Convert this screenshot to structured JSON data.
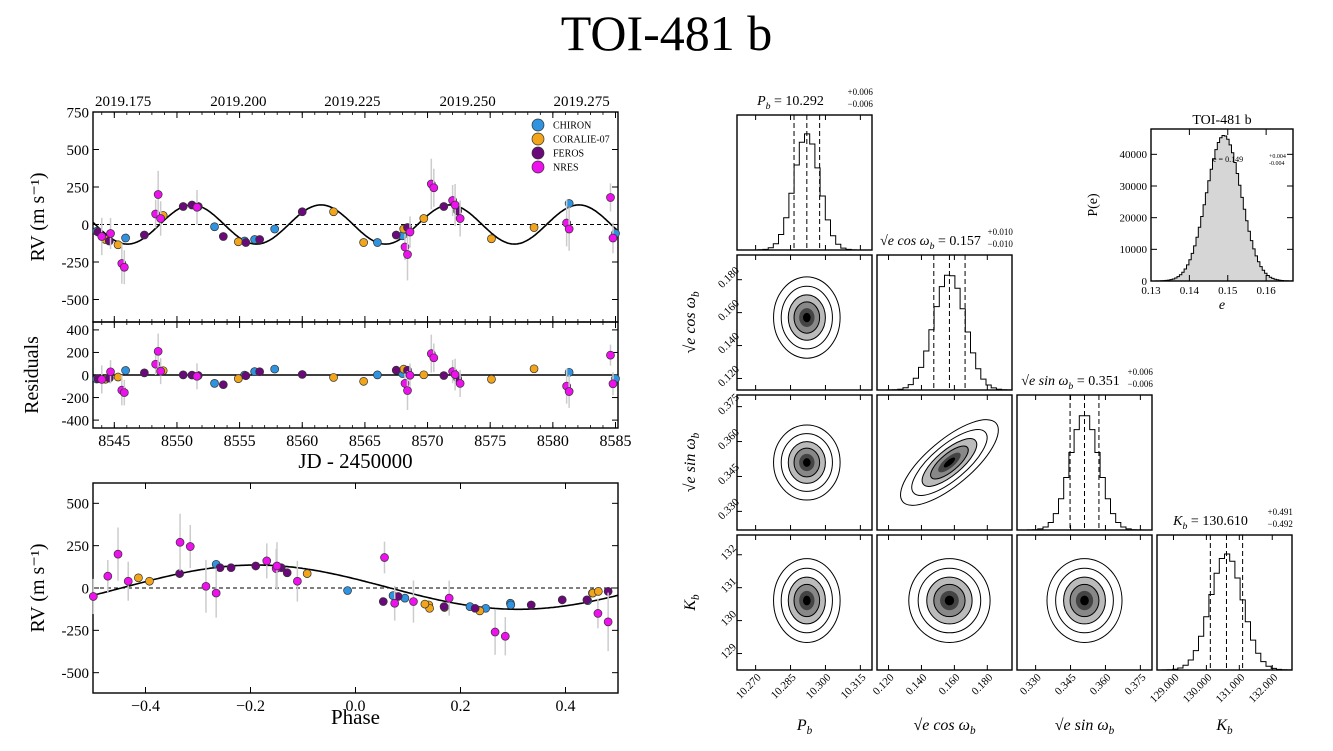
{
  "title": "TOI-481 b",
  "colors": {
    "CHIRON": "#2f93e0",
    "CORALIE-07": "#f2a51a",
    "FEROS": "#6a0a7a",
    "NRES": "#ee11ee"
  },
  "chart_data": [
    {
      "type": "scatter",
      "name": "rv_timeseries",
      "ylabel": "RV (m s⁻¹)",
      "xlim": [
        8543.3,
        8585.2
      ],
      "ylim": [
        -650,
        750
      ],
      "yticks": [
        -500,
        -250,
        0,
        250,
        500,
        750
      ],
      "xticks": [
        8545,
        8550,
        8555,
        8560,
        8565,
        8570,
        8575,
        8580,
        8585
      ],
      "top_axis_ticks": [
        {
          "label": "2019.175",
          "x": 8545.7
        },
        {
          "label": "2019.200",
          "x": 8554.9
        },
        {
          "label": "2019.225",
          "x": 8564.0
        },
        {
          "label": "2019.250",
          "x": 8573.2
        },
        {
          "label": "2019.275",
          "x": 8582.3
        }
      ],
      "legend": [
        "CHIRON",
        "CORALIE-07",
        "FEROS",
        "NRES"
      ],
      "model": {
        "period": 10.292,
        "K": 130.61,
        "t_peak": 8551.2
      },
      "series": {
        "CHIRON": {
          "x": [
            8543.6,
            8545.9,
            8553.0,
            8555.4,
            8556.2,
            8557.8,
            8566.0,
            8568.0,
            8581.3,
            8585.0
          ],
          "y": [
            -45,
            -90,
            -15,
            -110,
            -100,
            -30,
            -120,
            -75,
            140,
            -60
          ]
        },
        "CORALIE-07": {
          "x": [
            8544.3,
            8545.3,
            8548.9,
            8554.9,
            8562.5,
            8564.9,
            8568.1,
            8569.7,
            8575.1,
            8578.5
          ],
          "y": [
            -100,
            -135,
            60,
            -115,
            85,
            -120,
            -30,
            40,
            -95,
            -20
          ]
        },
        "FEROS": {
          "x": [
            8543.7,
            8544.6,
            8547.4,
            8550.5,
            8551.2,
            8551.7,
            8553.7,
            8555.5,
            8556.6,
            8560.0,
            8567.5,
            8568.4,
            8571.3,
            8572.4
          ],
          "y": [
            -50,
            -110,
            -70,
            120,
            130,
            120,
            -80,
            -120,
            -100,
            85,
            -70,
            -20,
            120,
            90
          ]
        },
        "NRES": {
          "x": [
            8544.0,
            8544.7,
            8545.6,
            8545.8,
            8548.3,
            8548.5,
            8548.7,
            8551.6,
            8568.2,
            8568.4,
            8568.6,
            8570.3,
            8570.5,
            8572.0,
            8572.2,
            8572.6,
            8581.1,
            8581.3,
            8584.6,
            8584.8
          ],
          "y": [
            -80,
            -60,
            -260,
            -285,
            70,
            200,
            40,
            115,
            -150,
            -200,
            -50,
            270,
            245,
            160,
            130,
            40,
            10,
            -30,
            180,
            -90
          ]
        }
      }
    },
    {
      "type": "scatter",
      "name": "residuals",
      "ylabel": "Residuals",
      "xlabel": "JD - 2450000",
      "xlim": [
        8543.3,
        8585.2
      ],
      "ylim": [
        -470,
        470
      ],
      "yticks": [
        -400,
        -200,
        0,
        200,
        400
      ]
    },
    {
      "type": "scatter",
      "name": "phase_folded",
      "ylabel": "RV (m s⁻¹)",
      "xlabel": "Phase",
      "xlim": [
        -0.5,
        0.5
      ],
      "ylim": [
        -620,
        620
      ],
      "yticks": [
        -500,
        -250,
        0,
        250,
        500
      ],
      "xticks": [
        -0.4,
        -0.2,
        0.0,
        0.2,
        0.4
      ]
    },
    {
      "type": "histogram",
      "name": "eccentricity_posterior",
      "title": "TOI-481 b",
      "xlabel": "e",
      "ylabel": "P(e)",
      "annotation": "e = 0.149",
      "annotation_err": "+0.004 / -0.004",
      "mean": 0.149,
      "sigma": 0.0045,
      "peak": 46000,
      "xlim": [
        0.13,
        0.167
      ],
      "ylim": [
        0,
        48000
      ],
      "xticks": [
        0.13,
        0.14,
        0.15,
        0.16
      ],
      "yticks": [
        0,
        10000,
        20000,
        30000,
        40000
      ]
    },
    {
      "type": "corner",
      "name": "corner_plot",
      "params": [
        {
          "axis_label": "P_b",
          "value": 10.292,
          "value_text": "10.292",
          "err_plus": "+0.006",
          "err_minus": "−0.006",
          "mean": 10.292,
          "sigma": 0.0055,
          "range": [
            10.262,
            10.32
          ],
          "ticks": [
            10.27,
            10.285,
            10.3,
            10.315
          ],
          "tick_labels": [
            "10.270",
            "10.285",
            "10.300",
            "10.315"
          ]
        },
        {
          "axis_label": "√e cos ω_b",
          "value": 0.157,
          "value_text": "0.157",
          "err_plus": "+0.010",
          "err_minus": "−0.010",
          "mean": 0.157,
          "sigma": 0.0095,
          "range": [
            0.113,
            0.195
          ],
          "ticks": [
            0.12,
            0.14,
            0.16,
            0.18
          ],
          "tick_labels": [
            "0.120",
            "0.140",
            "0.160",
            "0.180"
          ]
        },
        {
          "axis_label": "√e sin ω_b",
          "value": 0.351,
          "value_text": "0.351",
          "err_plus": "+0.006",
          "err_minus": "−0.006",
          "mean": 0.351,
          "sigma": 0.0062,
          "range": [
            0.322,
            0.38
          ],
          "ticks": [
            0.33,
            0.345,
            0.36,
            0.375
          ],
          "tick_labels": [
            "0.330",
            "0.345",
            "0.360",
            "0.375"
          ]
        },
        {
          "axis_label": "K_b",
          "value": 130.61,
          "value_text": "130.610",
          "err_plus": "+0.491",
          "err_minus": "−0.492",
          "mean": 130.61,
          "sigma": 0.49,
          "range": [
            128.5,
            132.6
          ],
          "ticks": [
            129,
            130,
            131,
            132
          ],
          "tick_labels": [
            "129.000",
            "130.000",
            "131.000",
            "132.000"
          ],
          "y_tick_labels": [
            "129",
            "130",
            "131",
            "132"
          ]
        }
      ],
      "ylabels": {
        "cosw": [
          "0.120",
          "0.140",
          "0.160",
          "0.180"
        ],
        "sinw": [
          "0.330",
          "0.345",
          "0.360",
          "0.375"
        ]
      }
    }
  ]
}
